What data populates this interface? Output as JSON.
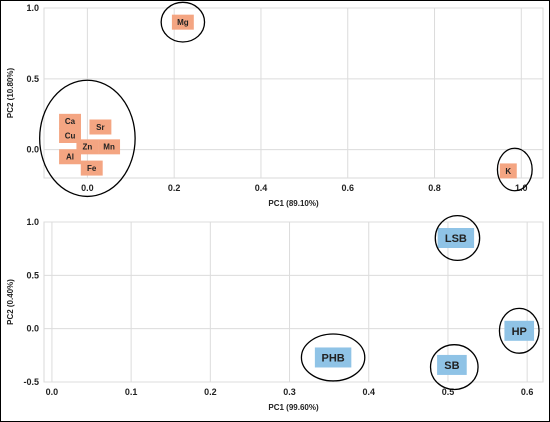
{
  "chart_data": [
    {
      "type": "scatter",
      "xlabel": "PC1 (89.10%)",
      "ylabel": "PC2 (10.80%)",
      "xlim": [
        -0.1,
        1.05
      ],
      "ylim": [
        -0.2,
        1.0
      ],
      "xticks": [
        0.0,
        0.2,
        0.4,
        0.6,
        0.8,
        1.0
      ],
      "yticks": [
        -0.0,
        0.5,
        1.0
      ],
      "grid": true,
      "marker_color": "#F4A582",
      "points": [
        {
          "label": "Mg",
          "x": 0.22,
          "y": 0.9
        },
        {
          "label": "Ca",
          "x": -0.04,
          "y": 0.2
        },
        {
          "label": "Cu",
          "x": -0.04,
          "y": 0.1
        },
        {
          "label": "Al",
          "x": -0.04,
          "y": -0.05
        },
        {
          "label": "Sr",
          "x": 0.03,
          "y": 0.16
        },
        {
          "label": "Zn",
          "x": 0.0,
          "y": 0.02
        },
        {
          "label": "Mn",
          "x": 0.05,
          "y": 0.02
        },
        {
          "label": "Fe",
          "x": 0.01,
          "y": -0.13
        },
        {
          "label": "K",
          "x": 0.97,
          "y": -0.15
        }
      ],
      "circles": [
        {
          "cx": 0.22,
          "cy": 0.9,
          "rx": 0.05,
          "ry": 0.14
        },
        {
          "cx": 0.0,
          "cy": 0.08,
          "rx": 0.11,
          "ry": 0.41
        },
        {
          "cx": 0.985,
          "cy": -0.14,
          "rx": 0.04,
          "ry": 0.15
        }
      ]
    },
    {
      "type": "scatter",
      "xlabel": "PC1 (99.60%)",
      "ylabel": "PC2 (0.40%)",
      "xlim": [
        -0.01,
        0.62
      ],
      "ylim": [
        -0.5,
        1.0
      ],
      "xticks": [
        0.0,
        0.1,
        0.2,
        0.3,
        0.4,
        0.5,
        0.6
      ],
      "yticks": [
        -0.5,
        0.0,
        0.5,
        1.0
      ],
      "grid": true,
      "marker_color": "#8FC3E6",
      "points": [
        {
          "label": "LSB",
          "x": 0.51,
          "y": 0.85
        },
        {
          "label": "HP",
          "x": 0.59,
          "y": -0.02
        },
        {
          "label": "PHB",
          "x": 0.355,
          "y": -0.27
        },
        {
          "label": "SB",
          "x": 0.505,
          "y": -0.34
        }
      ],
      "circles": [
        {
          "cx": 0.512,
          "cy": 0.85,
          "rx": 0.028,
          "ry": 0.21
        },
        {
          "cx": 0.59,
          "cy": -0.02,
          "rx": 0.025,
          "ry": 0.21
        },
        {
          "cx": 0.355,
          "cy": -0.27,
          "rx": 0.04,
          "ry": 0.22
        },
        {
          "cx": 0.508,
          "cy": -0.36,
          "rx": 0.03,
          "ry": 0.21
        }
      ]
    }
  ]
}
